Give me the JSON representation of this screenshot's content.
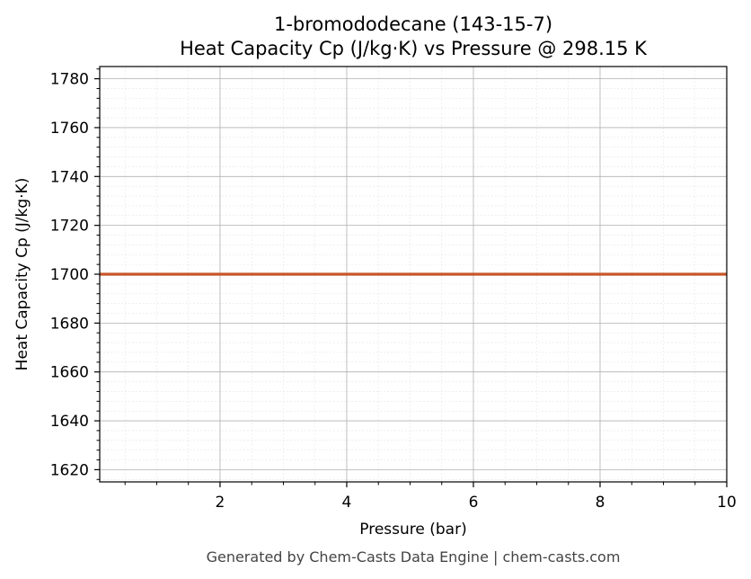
{
  "chart_data": {
    "type": "line",
    "title": "1-bromododecane (143-15-7)",
    "subtitle": "Heat Capacity Cp (J/kg·K) vs Pressure @ 298.15 K",
    "xlabel": "Pressure (bar)",
    "ylabel": "Heat Capacity Cp (J/kg·K)",
    "xlim": [
      0.1,
      10
    ],
    "ylim": [
      1615,
      1785
    ],
    "xticks": [
      2,
      4,
      6,
      8,
      10
    ],
    "xtick_labels": [
      "2",
      "4",
      "6",
      "8",
      "10"
    ],
    "yticks": [
      1620,
      1640,
      1660,
      1680,
      1700,
      1720,
      1740,
      1760,
      1780
    ],
    "ytick_labels": [
      "1620",
      "1640",
      "1660",
      "1680",
      "1700",
      "1720",
      "1740",
      "1760",
      "1780"
    ],
    "grid": true,
    "minor_grid": true,
    "series": [
      {
        "color": "#c8552a",
        "x": [
          0.1,
          10
        ],
        "y": [
          1700,
          1700
        ]
      }
    ]
  },
  "footer": "Generated by Chem-Casts Data Engine | chem-casts.com"
}
